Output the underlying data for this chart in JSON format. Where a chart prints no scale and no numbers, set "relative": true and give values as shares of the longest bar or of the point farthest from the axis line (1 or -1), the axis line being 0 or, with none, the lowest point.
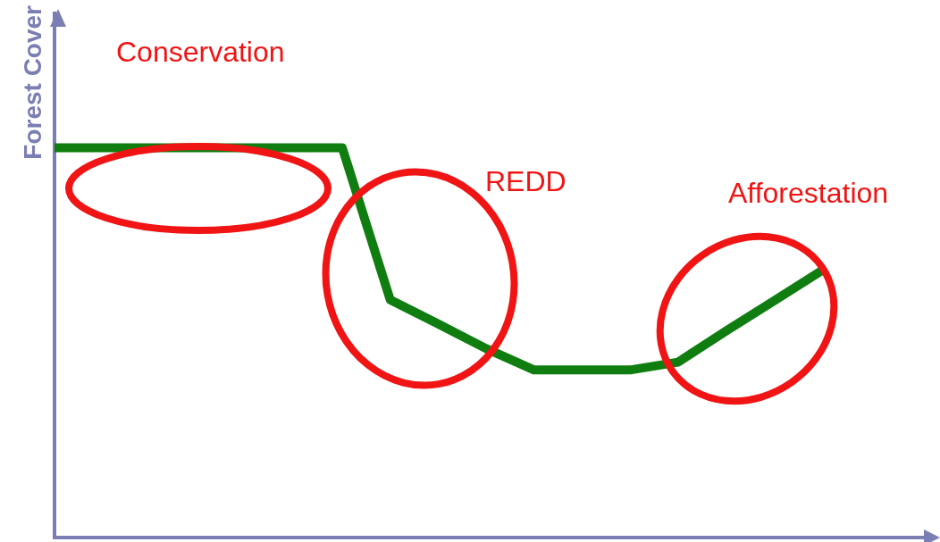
{
  "chart_data": {
    "type": "line",
    "relative": true,
    "ylabel": "Forest Cover",
    "categories": [
      null,
      null,
      null,
      null,
      null,
      null,
      null,
      null,
      null,
      null,
      null,
      null,
      null,
      null,
      null,
      null,
      null
    ],
    "series": [
      {
        "color": "#0f7d0f",
        "values": [
          1,
          1,
          1,
          1,
          1,
          1,
          1,
          0.61,
          0.548,
          0.485,
          0.43,
          0.43,
          0.43,
          0.45,
          0.53,
          0.607,
          0.685
        ]
      }
    ],
    "annotations": [
      "Conservation",
      "REDD",
      "Afforestation"
    ],
    "marker": "none",
    "grid": false,
    "legend": false
  }
}
